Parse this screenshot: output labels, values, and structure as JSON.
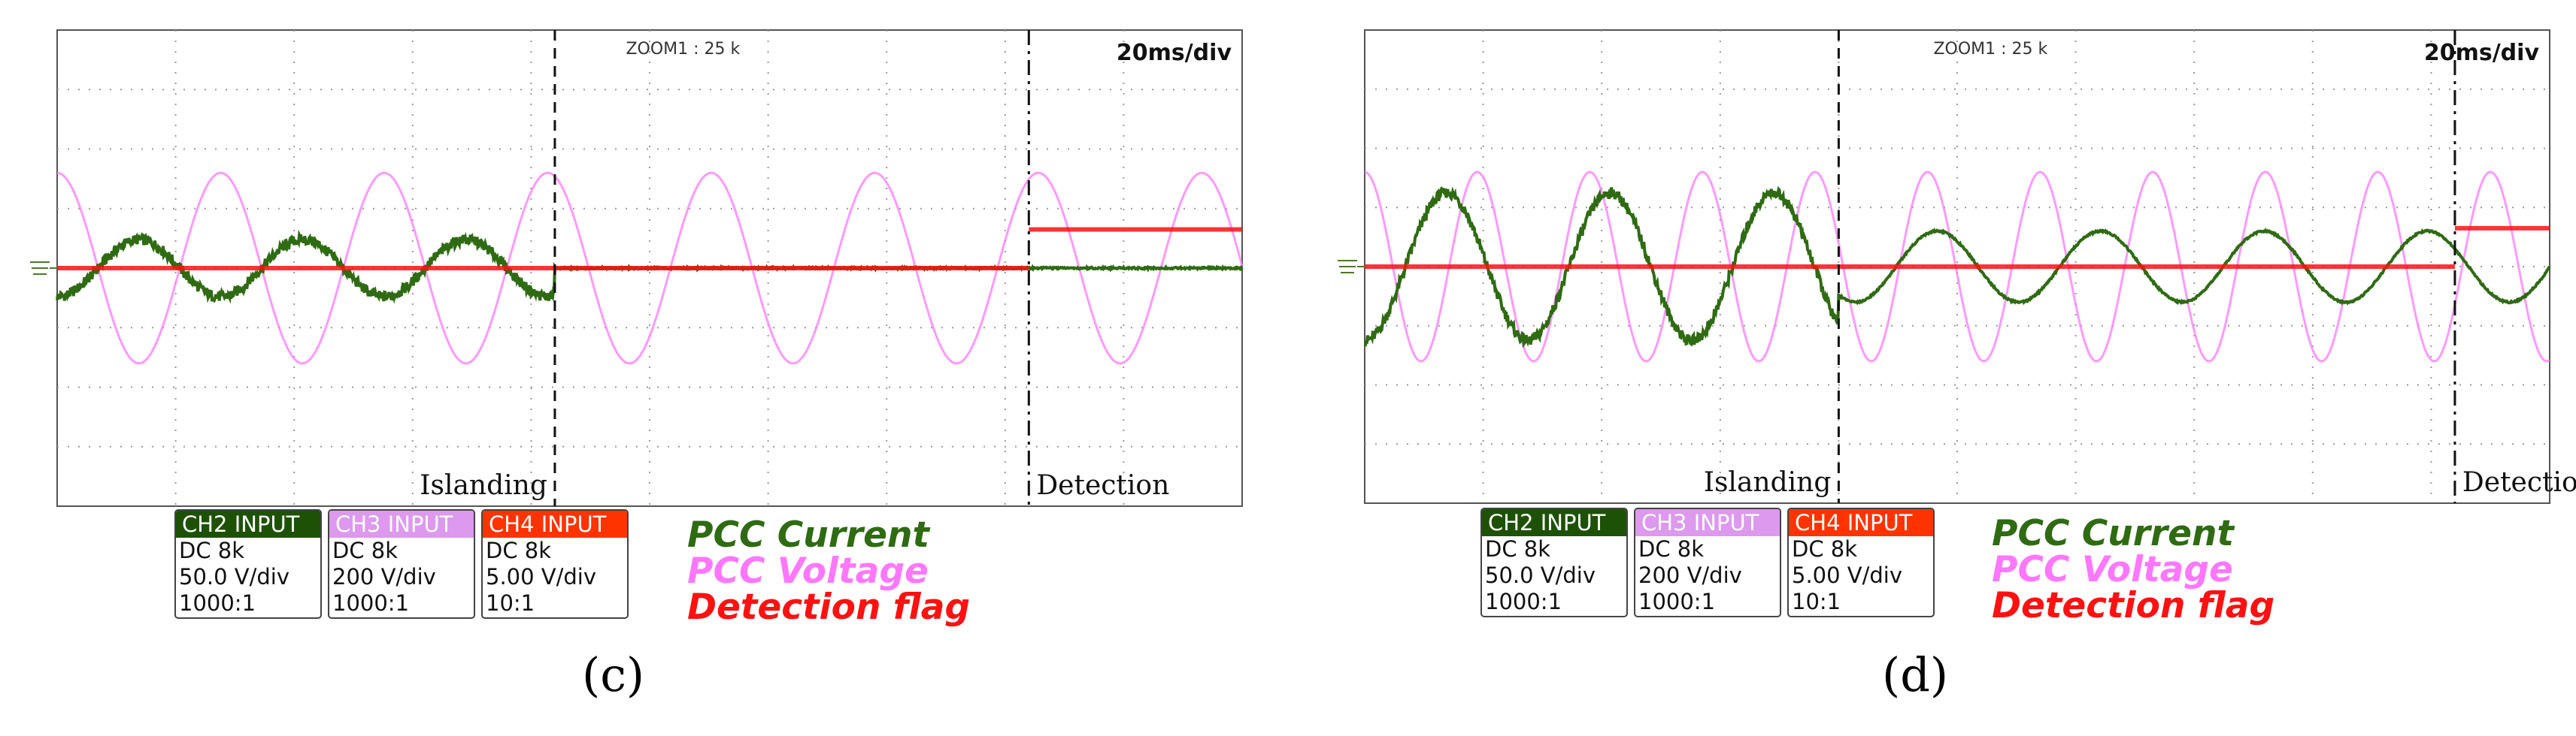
{
  "chart_data": [
    {
      "id": "c",
      "type": "line",
      "panel_label": "(c)",
      "zoom": "ZOOM1 : 25 k",
      "timebase": "20ms/div",
      "markers": [
        {
          "label": "Islanding",
          "time_div": 4.2,
          "style": "dashed"
        },
        {
          "label": "Detection",
          "time_div": 8.2,
          "style": "dash-dot"
        }
      ],
      "series": [
        {
          "name": "PCC Current",
          "color": "#2e6b12",
          "color_key": "current",
          "amplitude_div": 0.48,
          "amplitude_after_islanding_div": 0.0,
          "offset_after_islanding_div": 0.0,
          "period_div": 1.38,
          "phase_deg": 180,
          "noisy": true
        },
        {
          "name": "PCC Voltage",
          "color": "#dd99ee",
          "color_key": "voltage",
          "amplitude_div": 1.6,
          "period_div": 1.38,
          "phase_deg": 0
        },
        {
          "name": "Detection flag",
          "color": "#ff2a00",
          "color_key": "flag",
          "step_at_div": 8.2,
          "level_before_div": 0.0,
          "level_after_div": 0.65
        }
      ],
      "channels": [
        {
          "head": "CH2 INPUT",
          "color": "#1d5206",
          "lines": [
            "DC 8k",
            "50.0 V/div",
            "1000:1"
          ]
        },
        {
          "head": "CH3 INPUT",
          "color": "#dd99ee",
          "lines": [
            "DC 8k",
            "200 V/div",
            "1000:1"
          ]
        },
        {
          "head": "CH4 INPUT",
          "color": "#ff3300",
          "lines": [
            "DC 8k",
            "5.00 V/div",
            "10:1"
          ]
        }
      ],
      "legend": [
        "PCC Current",
        "PCC Voltage",
        "Detection flag"
      ]
    },
    {
      "id": "d",
      "type": "line",
      "panel_label": "(d)",
      "zoom": "ZOOM1 : 25 k",
      "timebase": "20ms/div",
      "markers": [
        {
          "label": "Islanding",
          "time_div": 4.0,
          "style": "dashed"
        },
        {
          "label": "Detection",
          "time_div": 9.2,
          "style": "dash-dot"
        }
      ],
      "series": [
        {
          "name": "PCC Current",
          "color": "#2e6b12",
          "color_key": "current",
          "amplitude_div": 1.25,
          "amplitude_after_islanding_div": 0.6,
          "offset_after_islanding_div": 0.0,
          "period_div": 1.38,
          "phase_deg": 180,
          "noisy": true
        },
        {
          "name": "PCC Voltage",
          "color": "#dd99ee",
          "color_key": "voltage",
          "amplitude_div": 1.6,
          "period_div": 0.95,
          "phase_deg": 0
        },
        {
          "name": "Detection flag",
          "color": "#ff2a00",
          "color_key": "flag",
          "step_at_div": 9.2,
          "level_before_div": 0.0,
          "level_after_div": 0.65
        }
      ],
      "channels": [
        {
          "head": "CH2 INPUT",
          "color": "#1d5206",
          "lines": [
            "DC 8k",
            "50.0 V/div",
            "1000:1"
          ]
        },
        {
          "head": "CH3 INPUT",
          "color": "#dd99ee",
          "lines": [
            "DC 8k",
            "200 V/div",
            "1000:1"
          ]
        },
        {
          "head": "CH4 INPUT",
          "color": "#ff3300",
          "lines": [
            "DC 8k",
            "5.00 V/div",
            "10:1"
          ]
        }
      ],
      "legend": [
        "PCC Current",
        "PCC Voltage",
        "Detection flag"
      ]
    }
  ],
  "colors": {
    "current": "#2e6b12",
    "voltage": "#ff77ff",
    "flag": "#ff1111"
  },
  "ground_icon": "ground-icon"
}
